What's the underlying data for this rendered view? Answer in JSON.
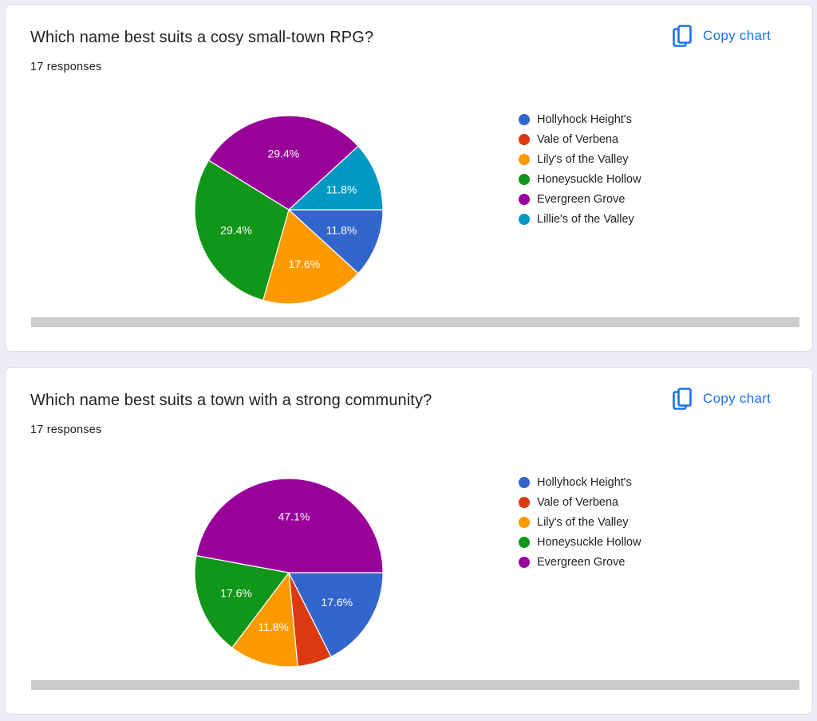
{
  "copy_label": "Copy chart",
  "colors": {
    "accent": "#1a73e8",
    "slices": [
      "#3366cc",
      "#dc3912",
      "#ff9900",
      "#109618",
      "#990099",
      "#0099c6"
    ]
  },
  "cards": [
    {
      "title": "Which name best suits a cosy small-town RPG?",
      "responses": "17 responses",
      "legend": [
        "Hollyhock Height's",
        "Vale of Verbena",
        "Lily's of the Valley",
        "Honeysuckle Hollow",
        "Evergreen Grove",
        "Lillie's of the Valley"
      ]
    },
    {
      "title": "Which name best suits a town with a strong community?",
      "responses": "17 responses",
      "legend": [
        "Hollyhock Height's",
        "Vale of Verbena",
        "Lily's of the Valley",
        "Honeysuckle Hollow",
        "Evergreen Grove"
      ]
    }
  ],
  "chart_data": [
    {
      "type": "pie",
      "title": "Which name best suits a cosy small-town RPG?",
      "legend_position": "right",
      "categories": [
        "Hollyhock Height's",
        "Vale of Verbena",
        "Lily's of the Valley",
        "Honeysuckle Hollow",
        "Evergreen Grove",
        "Lillie's of the Valley"
      ],
      "values": [
        11.8,
        0,
        17.6,
        29.4,
        29.4,
        11.8
      ],
      "labels": [
        "11.8%",
        "",
        "17.6%",
        "29.4%",
        "29.4%",
        "11.8%"
      ],
      "unit": "%"
    },
    {
      "type": "pie",
      "title": "Which name best suits a town with a strong community?",
      "legend_position": "right",
      "categories": [
        "Hollyhock Height's",
        "Vale of Verbena",
        "Lily's of the Valley",
        "Honeysuckle Hollow",
        "Evergreen Grove"
      ],
      "values": [
        17.6,
        5.9,
        11.8,
        17.6,
        47.1
      ],
      "labels": [
        "17.6%",
        "",
        "11.8%",
        "17.6%",
        "47.1%"
      ],
      "unit": "%"
    }
  ]
}
